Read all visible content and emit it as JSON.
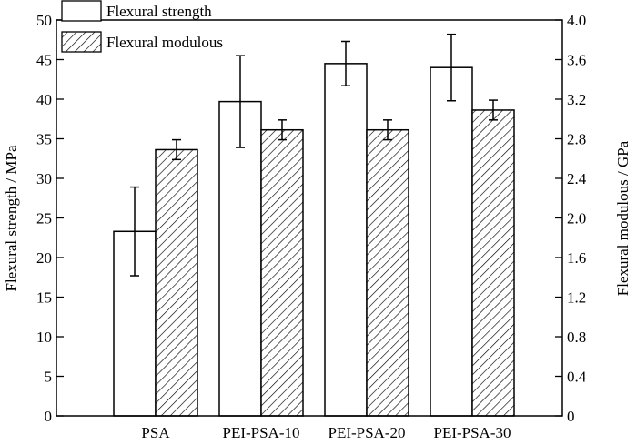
{
  "chart_data": {
    "type": "bar",
    "categories": [
      "PSA",
      "PEI-PSA-10",
      "PEI-PSA-20",
      "PEI-PSA-30"
    ],
    "series": [
      {
        "name": "Flexural strength",
        "axis": "left",
        "values": [
          23.3,
          39.7,
          44.5,
          44.0
        ],
        "errors": [
          5.6,
          5.8,
          2.8,
          4.2
        ]
      },
      {
        "name": "Flexural modulous",
        "axis": "right",
        "values": [
          2.69,
          2.89,
          2.89,
          3.09
        ],
        "errors": [
          0.1,
          0.1,
          0.1,
          0.1
        ]
      }
    ],
    "ylabel": "Flexural strength / MPa",
    "ylim": [
      0,
      50
    ],
    "yticks": [
      0,
      5,
      10,
      15,
      20,
      25,
      30,
      35,
      40,
      45,
      50
    ],
    "y2label": "Flexural modulous / GPa",
    "y2lim": [
      0,
      4.0
    ],
    "y2ticks": [
      "0",
      "0.4",
      "0.8",
      "1.2",
      "1.6",
      "2.0",
      "2.4",
      "2.8",
      "3.2",
      "3.6",
      "4.0"
    ],
    "legend_position": "top-left",
    "grid": false,
    "colors": {
      "series1_fill": "#ffffff",
      "series2_fill": "hatched",
      "stroke": "#000000"
    }
  }
}
